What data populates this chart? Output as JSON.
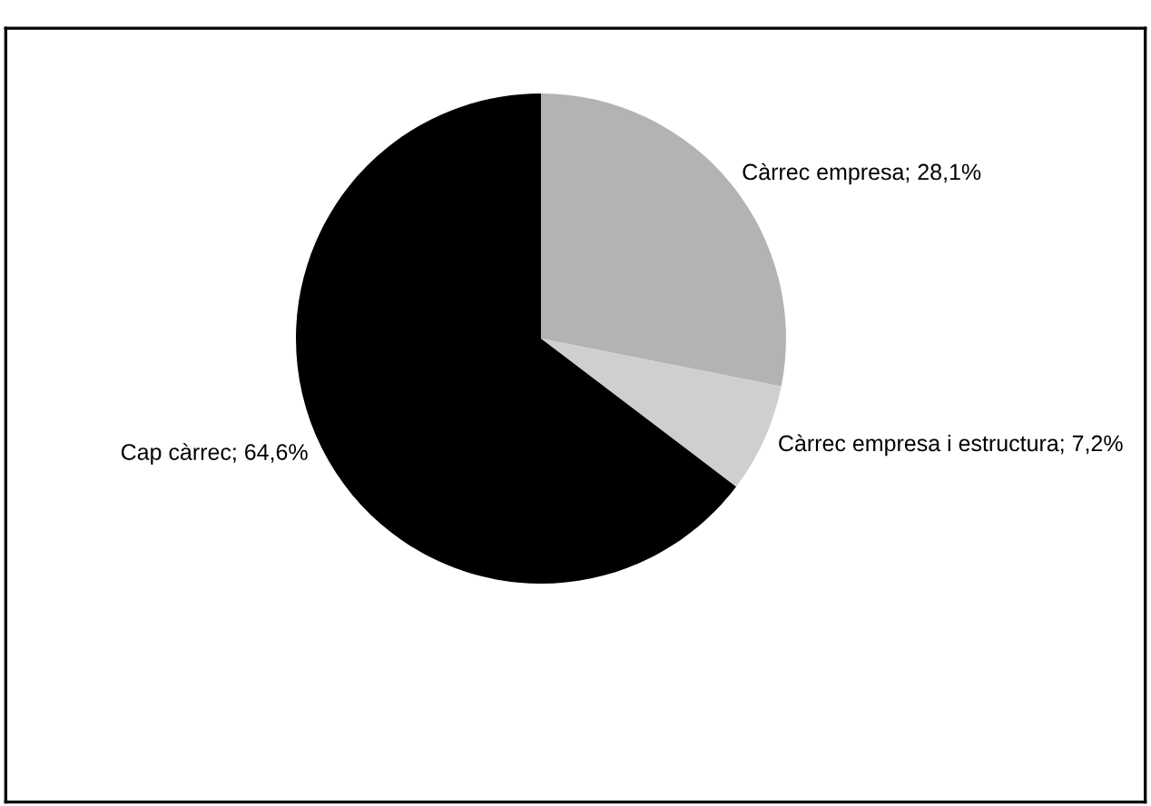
{
  "chart_data": {
    "type": "pie",
    "categories": [
      "Càrrec empresa",
      "Càrrec empresa i estructura",
      "Cap càrrec"
    ],
    "values": [
      28.1,
      7.2,
      64.6
    ],
    "value_labels": [
      "; 28,1%",
      "; 7,2%",
      "; 64,6%"
    ],
    "colors": [
      "#b3b3b3",
      "#cfcfcf",
      "#000000"
    ]
  }
}
